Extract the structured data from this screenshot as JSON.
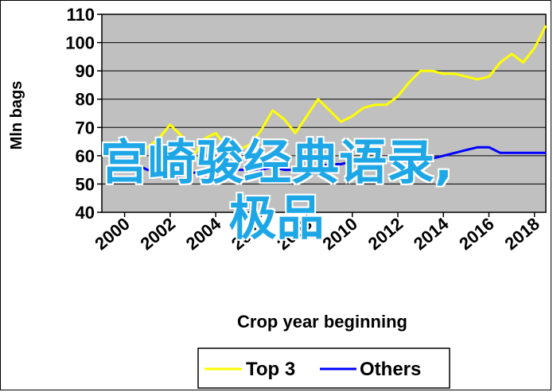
{
  "overlay": {
    "line1": "宫崎骏经典语录,",
    "line2": "极品"
  },
  "chart_data": {
    "type": "line",
    "xlabel": "Crop year beginning",
    "ylabel": "Mln bags",
    "xlim": [
      1999,
      2018.5
    ],
    "ylim": [
      40,
      110
    ],
    "yticks": [
      40,
      50,
      60,
      70,
      80,
      90,
      100,
      110
    ],
    "xticks": [
      2000,
      2002,
      2004,
      2006,
      2008,
      2010,
      2012,
      2014,
      2016,
      2018
    ],
    "grid": true,
    "background": "#c0c0c0",
    "legend_position": "bottom",
    "series": [
      {
        "name": "Top 3",
        "color": "#ffff00",
        "x": [
          2000,
          2000.5,
          2001,
          2001.5,
          2002,
          2002.5,
          2003,
          2003.5,
          2004,
          2004.5,
          2005,
          2005.5,
          2006,
          2006.5,
          2007,
          2007.5,
          2008,
          2008.5,
          2009,
          2009.5,
          2010,
          2010.5,
          2011,
          2011.5,
          2012,
          2012.5,
          2013,
          2013.5,
          2014,
          2014.5,
          2015,
          2015.5,
          2016,
          2016.5,
          2017,
          2017.5,
          2018,
          2018.5
        ],
        "values": [
          56,
          58,
          63,
          66,
          71,
          67,
          60,
          66,
          68,
          63,
          62,
          64,
          69,
          76,
          73,
          68,
          74,
          80,
          76,
          72,
          74,
          77,
          78,
          78,
          81,
          86,
          90,
          90,
          89,
          89,
          88,
          87,
          88,
          93,
          96,
          93,
          98,
          106
        ]
      },
      {
        "name": "Others",
        "color": "#0000ff",
        "x": [
          2000,
          2000.5,
          2001,
          2001.5,
          2002,
          2002.5,
          2003,
          2003.5,
          2004,
          2004.5,
          2005,
          2005.5,
          2006,
          2006.5,
          2007,
          2007.5,
          2008,
          2008.5,
          2009,
          2009.5,
          2010,
          2010.5,
          2011,
          2011.5,
          2012,
          2012.5,
          2013,
          2013.5,
          2014,
          2014.5,
          2015,
          2015.5,
          2016,
          2016.5,
          2017,
          2017.5,
          2018,
          2018.5
        ],
        "values": [
          58,
          57,
          55,
          54,
          53,
          53,
          54,
          54,
          54,
          55,
          55,
          55,
          55,
          56,
          55,
          55,
          56,
          56,
          57,
          57,
          58,
          58,
          58,
          59,
          59,
          60,
          59,
          59,
          60,
          61,
          62,
          63,
          63,
          61,
          61,
          61,
          61,
          61
        ]
      }
    ]
  }
}
